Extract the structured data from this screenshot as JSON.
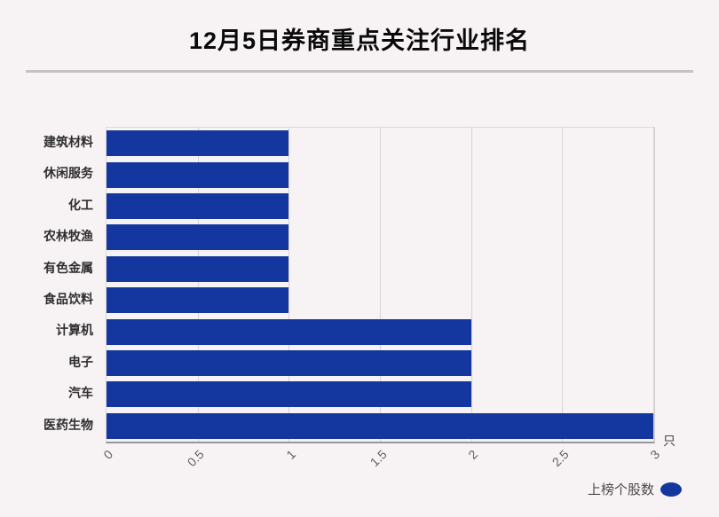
{
  "title": "12月5日券商重点关注行业排名",
  "chart_data": {
    "type": "bar",
    "orientation": "horizontal",
    "categories": [
      "建筑材料",
      "休闲服务",
      "化工",
      "农林牧渔",
      "有色金属",
      "食品饮料",
      "计算机",
      "电子",
      "汽车",
      "医药生物"
    ],
    "values": [
      1,
      1,
      1,
      1,
      1,
      1,
      2,
      2,
      2,
      3
    ],
    "series_name": "上榜个股数",
    "x_unit": "只",
    "xtick_labels": [
      "0",
      "0.5",
      "1",
      "1.5",
      "2",
      "2.5",
      "3"
    ],
    "xlim": [
      0,
      3
    ],
    "grid": true,
    "legend_position": "lower right",
    "bar_color": "#14379f",
    "background_color": "#f7f2f3"
  }
}
